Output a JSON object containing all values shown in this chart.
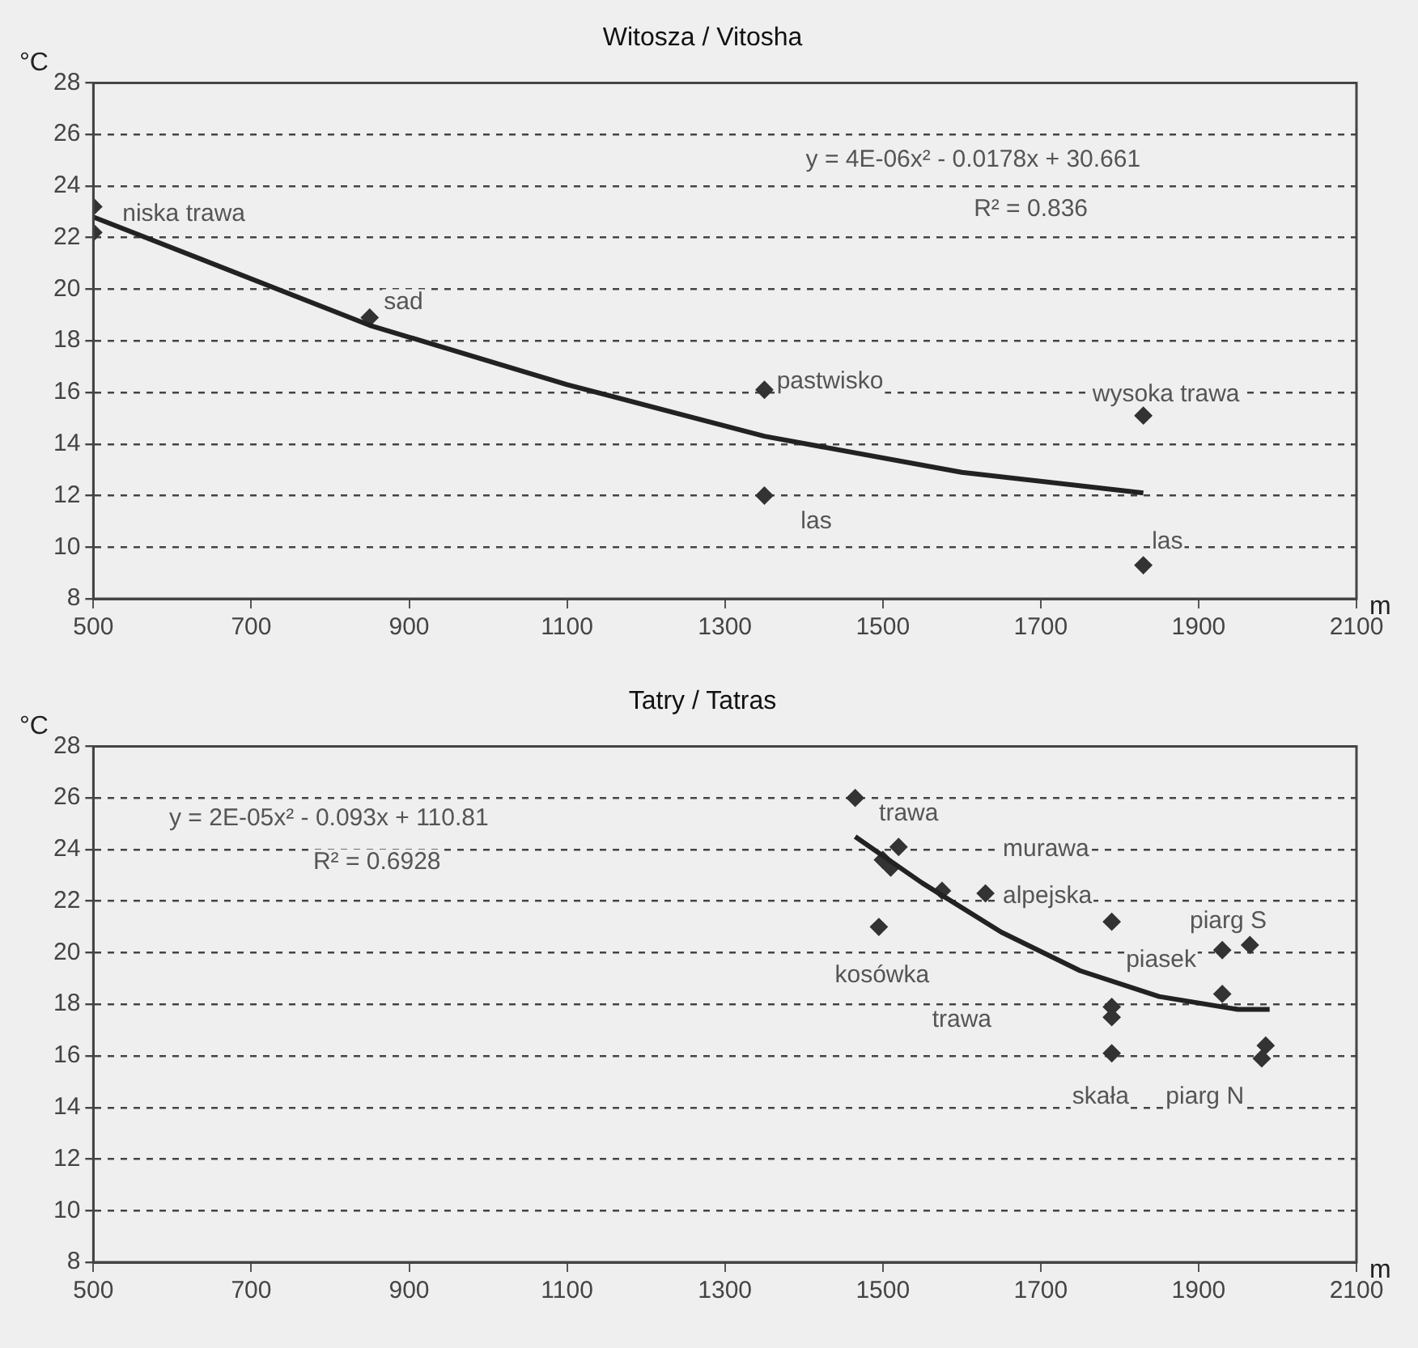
{
  "chart_data": [
    {
      "type": "scatter",
      "title": "Witosza / Vitosha",
      "xlabel": "m",
      "ylabel": "°C",
      "grid": "y",
      "legend": false,
      "xlim": [
        500,
        2100
      ],
      "xticks": [
        500,
        700,
        900,
        1100,
        1300,
        1500,
        1700,
        1900,
        2100
      ],
      "ylim": [
        8,
        28
      ],
      "yticks": [
        8,
        10,
        12,
        14,
        16,
        18,
        20,
        22,
        24,
        26,
        28
      ],
      "series": [
        {
          "type": "scatter",
          "marker": "diamond",
          "color": "#333333",
          "x": [
            500,
            500,
            850,
            1350,
            1350,
            1830,
            1830
          ],
          "values": [
            23.2,
            22.2,
            18.9,
            16.1,
            12.0,
            15.1,
            9.3
          ]
        },
        {
          "type": "line",
          "marker": "none",
          "color": "#222222",
          "x": [
            500,
            850,
            1100,
            1350,
            1600,
            1830
          ],
          "values": [
            22.8,
            18.6,
            16.3,
            14.3,
            12.9,
            12.1
          ]
        }
      ],
      "annotations": [
        "y = 4E-06x² - 0.0178x + 30.661",
        "R² = 0.836",
        "niska trawa",
        "sad",
        "pastwisko",
        "wysoka trawa",
        "las",
        "las"
      ]
    },
    {
      "type": "scatter",
      "title": "Tatry / Tatras",
      "xlabel": "m",
      "ylabel": "°C",
      "grid": "y",
      "legend": false,
      "xlim": [
        500,
        2100
      ],
      "xticks": [
        500,
        700,
        900,
        1100,
        1300,
        1500,
        1700,
        1900,
        2100
      ],
      "ylim": [
        8,
        28
      ],
      "yticks": [
        8,
        10,
        12,
        14,
        16,
        18,
        20,
        22,
        24,
        26,
        28
      ],
      "series": [
        {
          "type": "scatter",
          "marker": "diamond",
          "color": "#333333",
          "x": [
            1465,
            1500,
            1510,
            1520,
            1495,
            1575,
            1630,
            1790,
            1790,
            1790,
            1790,
            1930,
            1965,
            1930,
            1985,
            1980
          ],
          "values": [
            26.0,
            23.6,
            23.3,
            24.1,
            21.0,
            22.4,
            22.3,
            21.2,
            17.9,
            17.5,
            16.1,
            20.1,
            20.3,
            18.4,
            16.4,
            15.9
          ]
        },
        {
          "type": "line",
          "marker": "none",
          "color": "#222222",
          "x": [
            1465,
            1550,
            1650,
            1750,
            1850,
            1950,
            1990
          ],
          "values": [
            24.5,
            22.7,
            20.8,
            19.3,
            18.3,
            17.8,
            17.8
          ]
        }
      ],
      "annotations": [
        "y = 2E-05x² - 0.093x + 110.81",
        "R² = 0.6928",
        "trawa",
        "murawa",
        "alpejska",
        "kosówka",
        "piasek",
        "trawa",
        "skała",
        "piarg S",
        "piarg N"
      ]
    }
  ]
}
